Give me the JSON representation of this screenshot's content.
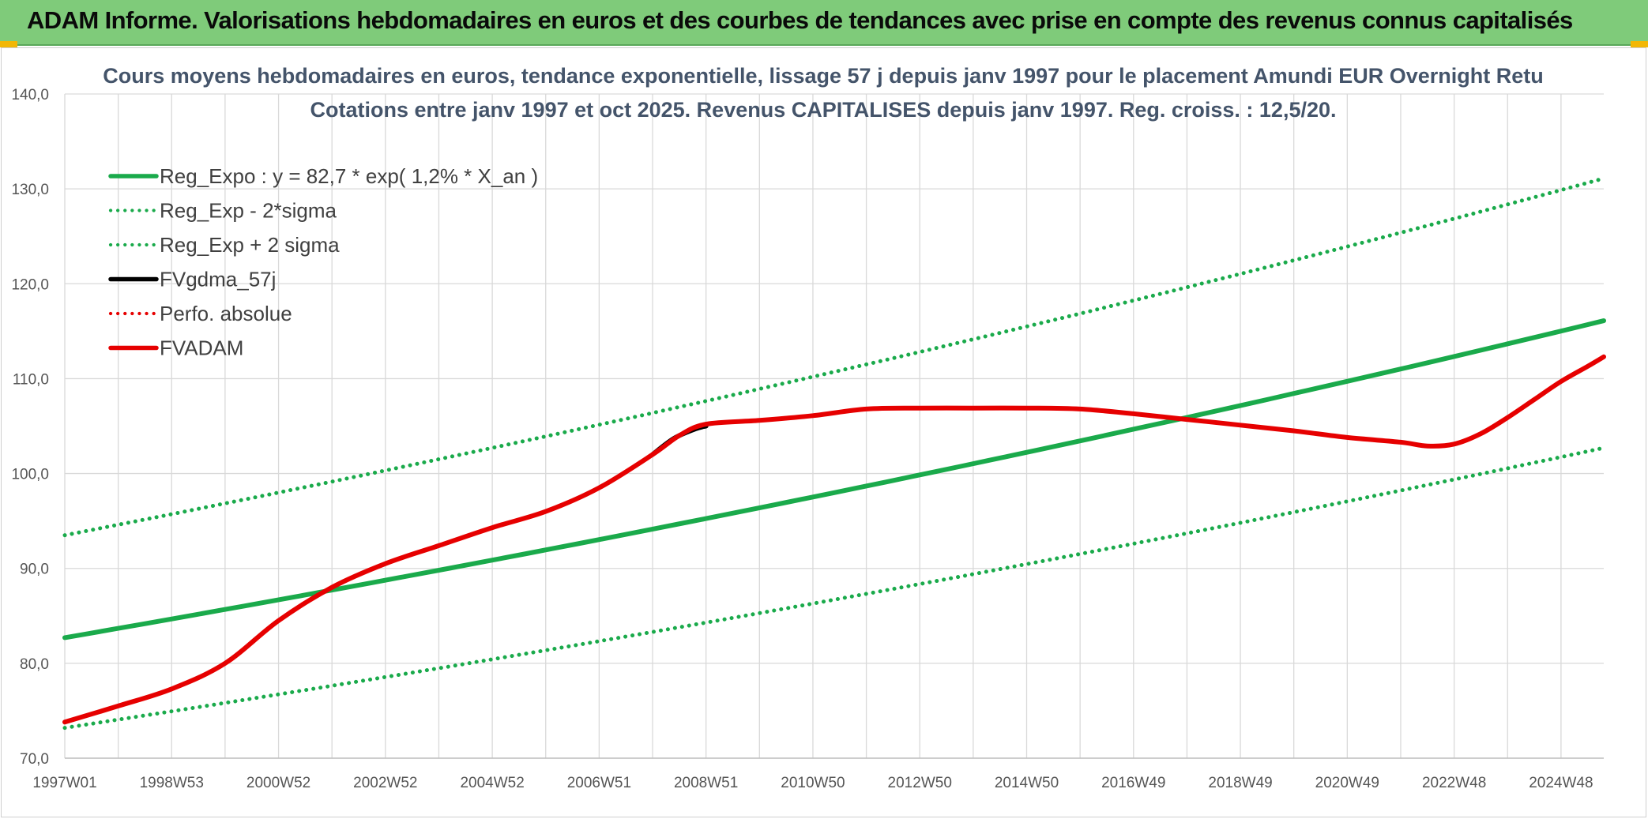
{
  "banner": {
    "title": "ADAM Informe. Valorisations hebdomadaires en euros et des courbes de tendances avec prise en compte des revenus connus capitalisés",
    "background": "#7fcb7a",
    "accent": "#f2b705"
  },
  "chart_data": {
    "type": "line",
    "title": "Cours moyens hebdomadaires en euros, tendance exponentielle, lissage 57 j depuis janv 1997 pour le placement Amundi EUR Overnight Retu",
    "subtitle": "Cotations entre janv 1997 et oct 2025. Revenus CAPITALISES depuis janv 1997. Reg. croiss. : 12,5/20.",
    "xlabel": "",
    "ylabel": "",
    "x_range": [
      1997.0,
      2025.8
    ],
    "ylim": [
      70,
      140
    ],
    "yticks": [
      70,
      80,
      90,
      100,
      110,
      120,
      130,
      140
    ],
    "ytick_labels": [
      "70,0",
      "80,0",
      "90,0",
      "100,0",
      "110,0",
      "120,0",
      "130,0",
      "140,0"
    ],
    "xticks": [
      1997.0,
      1999.0,
      2001.0,
      2003.0,
      2005.0,
      2007.0,
      2009.0,
      2011.0,
      2013.0,
      2015.0,
      2017.0,
      2019.0,
      2021.0,
      2023.0,
      2025.0
    ],
    "xtick_labels": [
      "1997W01",
      "1998W53",
      "2000W52",
      "2002W52",
      "2004W52",
      "2006W51",
      "2008W51",
      "2010W50",
      "2012W50",
      "2014W50",
      "2016W49",
      "2018W49",
      "2020W49",
      "2022W48",
      "2024W48"
    ],
    "grid": true,
    "legend_position": "top-left",
    "series": [
      {
        "name": "Reg_Expo : y = 82,7 * exp( 1,2% *  X_an )",
        "color": "#1aaa4b",
        "style": "solid",
        "x": [
          1997.0,
          2025.8
        ],
        "y": [
          82.7,
          116.1
        ]
      },
      {
        "name": "Reg_Exp - 2*sigma",
        "color": "#1aaa4b",
        "style": "dotted",
        "x": [
          1997.0,
          2025.8
        ],
        "y": [
          73.2,
          102.7
        ]
      },
      {
        "name": "Reg_Exp + 2 sigma",
        "color": "#1aaa4b",
        "style": "dotted",
        "x": [
          1997.0,
          2025.8
        ],
        "y": [
          93.5,
          131.1
        ]
      },
      {
        "name": "FVgdma_57j",
        "color": "#000000",
        "style": "solid",
        "x": [
          2008.0,
          2008.4,
          2008.8,
          2009.0
        ],
        "y": [
          102.0,
          103.7,
          104.7,
          105.0
        ]
      },
      {
        "name": "Perfo. absolue",
        "color": "#e60000",
        "style": "dotted",
        "x": [],
        "y": []
      },
      {
        "name": "FVADAM",
        "color": "#e60000",
        "style": "solid",
        "x": [
          1997.0,
          1998.0,
          1999.0,
          2000.0,
          2001.0,
          2002.0,
          2003.0,
          2004.0,
          2005.0,
          2006.0,
          2007.0,
          2008.0,
          2008.5,
          2009.0,
          2010.0,
          2011.0,
          2012.0,
          2013.0,
          2014.0,
          2015.0,
          2016.0,
          2017.0,
          2018.0,
          2019.0,
          2020.0,
          2021.0,
          2022.0,
          2022.5,
          2023.0,
          2023.5,
          2024.0,
          2024.5,
          2025.0,
          2025.5,
          2025.8
        ],
        "y": [
          73.8,
          75.5,
          77.3,
          80.0,
          84.5,
          88.0,
          90.5,
          92.4,
          94.3,
          96.0,
          98.5,
          102.0,
          104.0,
          105.2,
          105.6,
          106.1,
          106.8,
          106.9,
          106.9,
          106.9,
          106.8,
          106.3,
          105.7,
          105.1,
          104.5,
          103.8,
          103.3,
          102.9,
          103.1,
          104.2,
          105.9,
          107.8,
          109.7,
          111.3,
          112.3
        ]
      }
    ]
  }
}
